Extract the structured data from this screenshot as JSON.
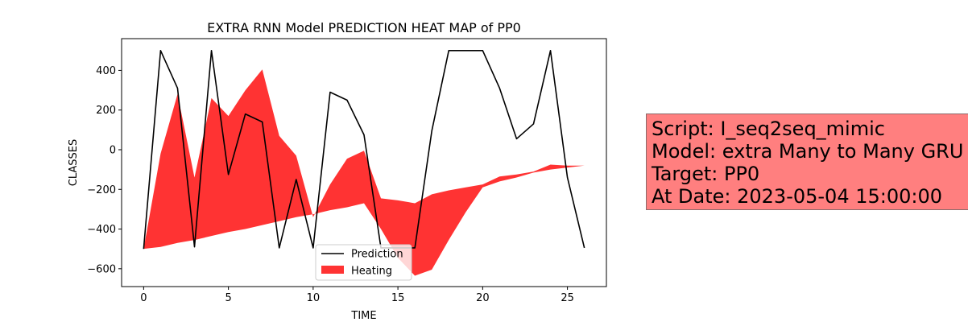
{
  "chart_data": {
    "type": "line",
    "title": "EXTRA RNN Model PREDICTION HEAT MAP of PP0",
    "xlabel": "TIME",
    "ylabel": "CLASSES",
    "xlim": [
      -1.3,
      27.3
    ],
    "ylim": [
      -690,
      560
    ],
    "xticks": [
      0,
      5,
      10,
      15,
      20,
      25
    ],
    "yticks": [
      -600,
      -400,
      -200,
      0,
      200,
      400
    ],
    "x": [
      0,
      1,
      2,
      3,
      4,
      5,
      6,
      7,
      8,
      9,
      10,
      11,
      12,
      13,
      14,
      15,
      16,
      17,
      18,
      19,
      20,
      21,
      22,
      23,
      24,
      25,
      26
    ],
    "series": [
      {
        "name": "Prediction",
        "color": "#000000",
        "values": [
          -500,
          500,
          310,
          -490,
          500,
          -125,
          180,
          140,
          -495,
          -150,
          -495,
          290,
          250,
          75,
          -495,
          -495,
          -495,
          95,
          500,
          500,
          500,
          310,
          55,
          130,
          500,
          -140,
          -495
        ]
      }
    ],
    "fill": {
      "name": "Heating",
      "color": "#ff0000",
      "top": [
        -500,
        -20,
        280,
        -140,
        260,
        170,
        300,
        405,
        70,
        -30,
        -340,
        -175,
        -45,
        -5,
        -245,
        -255,
        -270,
        -225,
        -205,
        -190,
        -175,
        -135,
        -125,
        -110,
        -75,
        -80,
        -80
      ],
      "bottom": [
        -500,
        -490,
        -470,
        -455,
        -435,
        -415,
        -400,
        -380,
        -360,
        -340,
        -325,
        -305,
        -290,
        -270,
        -400,
        -545,
        -635,
        -605,
        -455,
        -315,
        -190,
        -160,
        -140,
        -115,
        -100,
        -90,
        -80
      ]
    },
    "legend": "lower-center"
  },
  "info": {
    "line1": "Script: I_seq2seq_mimic",
    "line2": "Model: extra Many to Many GRU",
    "line3": "Target: PP0",
    "line4": "At Date: 2023-05-04 15:00:00"
  }
}
